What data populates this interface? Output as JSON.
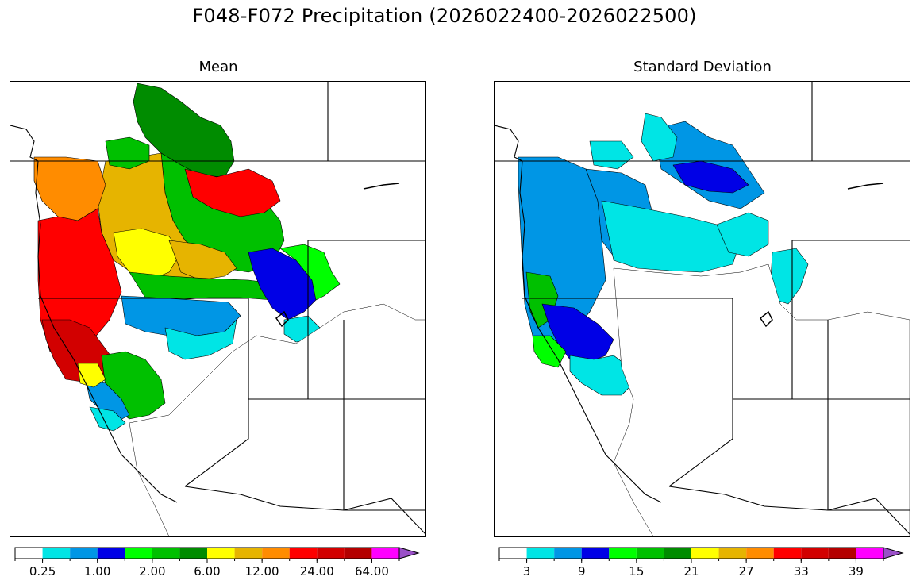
{
  "title": "F048-F072 Precipitation (2026022400-2026022500)",
  "panels": [
    {
      "id": "mean",
      "title": "Mean",
      "colorbar": {
        "colors": [
          "#ffffff",
          "#00e5e5",
          "#0096e5",
          "#0000e6",
          "#00ff00",
          "#00c000",
          "#008c00",
          "#ffff00",
          "#e6b400",
          "#ff8c00",
          "#ff0000",
          "#d20000",
          "#b40000",
          "#ff00ff",
          "#9a50c8"
        ],
        "tick_labels": [
          "0.25",
          "1.00",
          "2.00",
          "6.00",
          "12.00",
          "24.00",
          "64.00"
        ],
        "extend": "max"
      }
    },
    {
      "id": "stddev",
      "title": "Standard Deviation",
      "colorbar": {
        "colors": [
          "#ffffff",
          "#00e5e5",
          "#0096e5",
          "#0000e6",
          "#00ff00",
          "#00c000",
          "#008c00",
          "#ffff00",
          "#e6b400",
          "#ff8c00",
          "#ff0000",
          "#d20000",
          "#b40000",
          "#ff00ff",
          "#9a50c8"
        ],
        "tick_labels": [
          "3",
          "9",
          "15",
          "21",
          "27",
          "33",
          "39"
        ],
        "extend": "max"
      }
    }
  ],
  "map_regions": {
    "mean": [
      {
        "region": "northern-rockies-north",
        "color": "#008c00"
      },
      {
        "region": "northern-rockies-east",
        "color": "#00c000"
      },
      {
        "region": "inland-northwest",
        "color": "#e6b400"
      },
      {
        "region": "north-idaho",
        "color": "#ff0000"
      },
      {
        "region": "olympic-cascades",
        "color": "#ff8c00"
      },
      {
        "region": "oregon-coast",
        "color": "#ff0000"
      },
      {
        "region": "northern-california-coast",
        "color": "#d20000"
      },
      {
        "region": "central-oregon",
        "color": "#ffff00"
      },
      {
        "region": "blue-mountains",
        "color": "#e6b400"
      },
      {
        "region": "snake-river-plain",
        "color": "#00c000"
      },
      {
        "region": "upper-snake",
        "color": "#0000e6"
      },
      {
        "region": "northern-nevada",
        "color": "#0096e5"
      },
      {
        "region": "humboldt",
        "color": "#00e5e5"
      },
      {
        "region": "sierra-nevada",
        "color": "#00c000"
      },
      {
        "region": "central-valley",
        "color": "#0096e5"
      },
      {
        "region": "green-river",
        "color": "#00ff00"
      }
    ],
    "stddev": [
      {
        "region": "coast-range",
        "color": "#0096e5"
      },
      {
        "region": "cascades-oregon",
        "color": "#0096e5"
      },
      {
        "region": "north-coast",
        "color": "#00c000"
      },
      {
        "region": "northern-california",
        "color": "#0000e6"
      },
      {
        "region": "sierra",
        "color": "#00e5e5"
      },
      {
        "region": "columbia-basin",
        "color": "#00e5e5"
      },
      {
        "region": "northern-rockies",
        "color": "#0096e5"
      },
      {
        "region": "montana-core",
        "color": "#0000e6"
      },
      {
        "region": "snake-headwaters",
        "color": "#00e5e5"
      }
    ]
  }
}
